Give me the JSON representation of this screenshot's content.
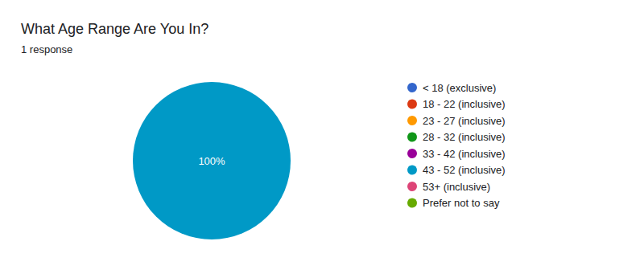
{
  "chart_data": {
    "type": "pie",
    "title": "What Age Range Are You In?",
    "subtitle": "1 response",
    "categories": [
      "< 18 (exclusive)",
      "18 - 22 (inclusive)",
      "23 - 27 (inclusive)",
      "28 - 32 (inclusive)",
      "33 - 42 (inclusive)",
      "43 - 52 (inclusive)",
      "53+ (inclusive)",
      "Prefer not to say"
    ],
    "values": [
      0,
      0,
      0,
      0,
      0,
      100,
      0,
      0
    ],
    "value_labels": [
      null,
      null,
      null,
      null,
      null,
      "100%",
      null,
      null
    ],
    "colors": [
      "#3366cc",
      "#dc3912",
      "#ff9900",
      "#109618",
      "#990099",
      "#0099c6",
      "#dd4477",
      "#66aa00"
    ],
    "data_labels": true,
    "legend": "right"
  }
}
